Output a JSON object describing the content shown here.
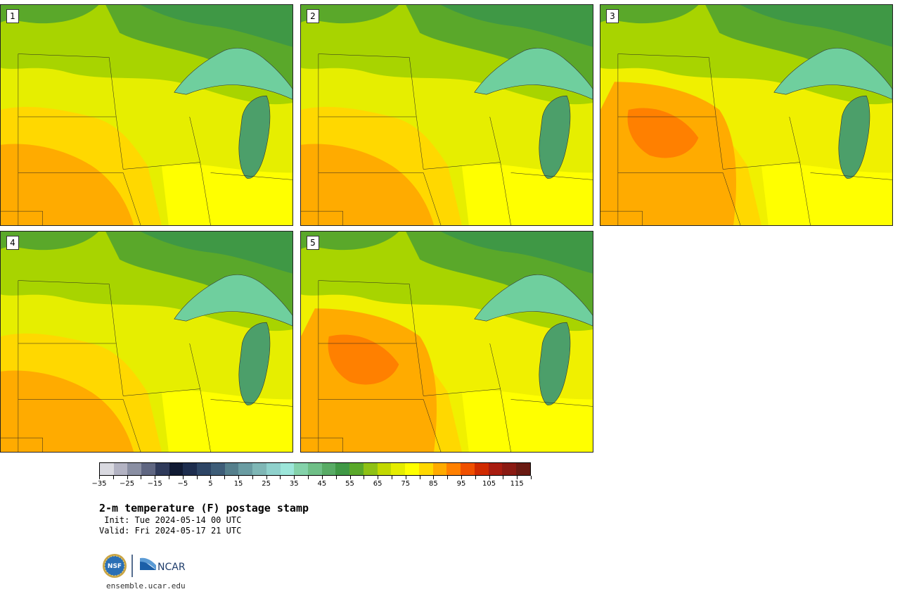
{
  "panels": [
    {
      "label": "1",
      "variant": "warm-sw"
    },
    {
      "label": "2",
      "variant": "warm-sw"
    },
    {
      "label": "3",
      "variant": "hot-center"
    },
    {
      "label": "4",
      "variant": "warm-sw"
    },
    {
      "label": "5",
      "variant": "hot-center"
    }
  ],
  "colorbar": {
    "colors": [
      "#d9d9e0",
      "#b3b3c3",
      "#8a8fa3",
      "#5f6681",
      "#2f3a5a",
      "#101a33",
      "#1d2d4e",
      "#2d4565",
      "#3e5d78",
      "#557f8c",
      "#6a9ca2",
      "#7fb7b6",
      "#8fd1cc",
      "#9ce6da",
      "#84d2aa",
      "#6fbf87",
      "#58ab65",
      "#3f9845",
      "#5aa82a",
      "#8fc115",
      "#c2d800",
      "#e5ec00",
      "#ffff00",
      "#ffd800",
      "#ffab00",
      "#ff8000",
      "#f05000",
      "#d02a00",
      "#a81c10",
      "#8a1a12",
      "#6a1a12"
    ],
    "tick_labels": [
      "−35",
      "−25",
      "−15",
      "−5",
      "5",
      "15",
      "25",
      "35",
      "45",
      "55",
      "65",
      "75",
      "85",
      "95",
      "105",
      "115"
    ],
    "min": -35,
    "max": 120,
    "step": 5
  },
  "title": "2-m temperature (F) postage stamp",
  "init": " Init: Tue 2024-05-14 00 UTC",
  "valid": "Valid: Fri 2024-05-17 21 UTC",
  "logos": {
    "nsf": "NSF",
    "ncar": "NCAR"
  },
  "website": "ensemble.ucar.edu"
}
